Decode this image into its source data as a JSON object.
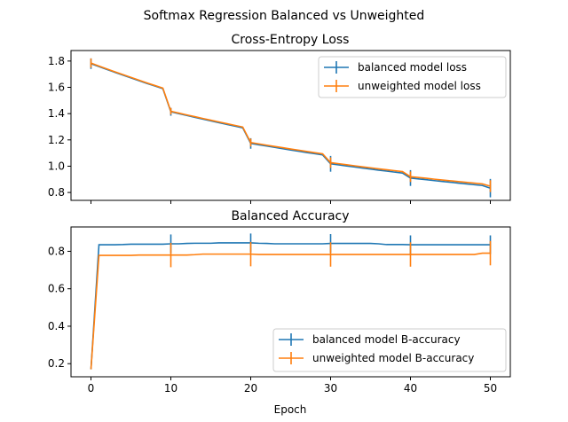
{
  "figure_title": "Softmax Regression Balanced vs Unweighted",
  "colors": {
    "balanced": "#1f77b4",
    "unweighted": "#ff7f0e"
  },
  "chart_data": [
    {
      "type": "line",
      "title": "Cross-Entropy Loss",
      "xlabel": "",
      "ylabel": "",
      "xlim": [
        -2.5,
        52.5
      ],
      "ylim": [
        0.74,
        1.88
      ],
      "xticks": [
        0,
        10,
        20,
        30,
        40,
        50
      ],
      "yticks": [
        0.8,
        1.0,
        1.2,
        1.4,
        1.6,
        1.8
      ],
      "ytick_labels": [
        "0.8",
        "1.0",
        "1.2",
        "1.4",
        "1.6",
        "1.8"
      ],
      "xtick_labels_shown": false,
      "legend_position": "top-right",
      "grid": false,
      "series": [
        {
          "name": "balanced model loss",
          "color_key": "balanced",
          "x": [
            0,
            1,
            2,
            3,
            4,
            5,
            6,
            7,
            8,
            9,
            10,
            11,
            12,
            13,
            14,
            15,
            16,
            17,
            18,
            19,
            20,
            21,
            22,
            23,
            24,
            25,
            26,
            27,
            28,
            29,
            30,
            31,
            32,
            33,
            34,
            35,
            36,
            37,
            38,
            39,
            40,
            41,
            42,
            43,
            44,
            45,
            46,
            47,
            48,
            49,
            50
          ],
          "y": [
            1.78,
            1.758,
            1.736,
            1.714,
            1.693,
            1.672,
            1.651,
            1.63,
            1.61,
            1.59,
            1.414,
            1.4,
            1.386,
            1.372,
            1.358,
            1.345,
            1.331,
            1.318,
            1.305,
            1.292,
            1.173,
            1.163,
            1.153,
            1.143,
            1.133,
            1.123,
            1.114,
            1.104,
            1.095,
            1.086,
            1.018,
            1.01,
            1.002,
            0.994,
            0.986,
            0.978,
            0.97,
            0.963,
            0.955,
            0.948,
            0.91,
            0.903,
            0.897,
            0.89,
            0.884,
            0.878,
            0.871,
            0.865,
            0.859,
            0.853,
            0.833
          ],
          "error_x": [
            0,
            10,
            20,
            30,
            40,
            50
          ],
          "error_y": [
            1.78,
            1.414,
            1.173,
            1.018,
            0.91,
            0.833
          ],
          "error_size": [
            0.04,
            0.03,
            0.04,
            0.06,
            0.06,
            0.07
          ]
        },
        {
          "name": "unweighted model loss",
          "color_key": "unweighted",
          "x": [
            0,
            1,
            2,
            3,
            4,
            5,
            6,
            7,
            8,
            9,
            10,
            11,
            12,
            13,
            14,
            15,
            16,
            17,
            18,
            19,
            20,
            21,
            22,
            23,
            24,
            25,
            26,
            27,
            28,
            29,
            30,
            31,
            32,
            33,
            34,
            35,
            36,
            37,
            38,
            39,
            40,
            41,
            42,
            43,
            44,
            45,
            46,
            47,
            48,
            49,
            50
          ],
          "y": [
            1.785,
            1.762,
            1.74,
            1.718,
            1.697,
            1.676,
            1.655,
            1.634,
            1.614,
            1.594,
            1.418,
            1.404,
            1.39,
            1.377,
            1.363,
            1.35,
            1.337,
            1.324,
            1.311,
            1.298,
            1.18,
            1.17,
            1.16,
            1.15,
            1.141,
            1.131,
            1.122,
            1.112,
            1.103,
            1.094,
            1.027,
            1.019,
            1.011,
            1.003,
            0.995,
            0.988,
            0.98,
            0.973,
            0.966,
            0.959,
            0.92,
            0.914,
            0.908,
            0.901,
            0.895,
            0.889,
            0.883,
            0.877,
            0.871,
            0.865,
            0.848
          ],
          "error_x": [
            0,
            10,
            20,
            30,
            40,
            50
          ],
          "error_y": [
            1.785,
            1.418,
            1.18,
            1.027,
            0.92,
            0.848
          ],
          "error_size": [
            0.035,
            0.025,
            0.03,
            0.04,
            0.04,
            0.045
          ]
        }
      ]
    },
    {
      "type": "line",
      "title": "Balanced Accuracy",
      "xlabel": "Epoch",
      "ylabel": "",
      "xlim": [
        -2.5,
        52.5
      ],
      "ylim": [
        0.13,
        0.93
      ],
      "xticks": [
        0,
        10,
        20,
        30,
        40,
        50
      ],
      "xtick_labels": [
        "0",
        "10",
        "20",
        "30",
        "40",
        "50"
      ],
      "yticks": [
        0.2,
        0.4,
        0.6,
        0.8
      ],
      "ytick_labels": [
        "0.2",
        "0.4",
        "0.6",
        "0.8"
      ],
      "legend_position": "bottom-right",
      "grid": false,
      "series": [
        {
          "name": "balanced model B-accuracy",
          "color_key": "balanced",
          "x": [
            0,
            1,
            2,
            3,
            4,
            5,
            6,
            7,
            8,
            9,
            10,
            11,
            12,
            13,
            14,
            15,
            16,
            17,
            18,
            19,
            20,
            21,
            22,
            23,
            24,
            25,
            26,
            27,
            28,
            29,
            30,
            31,
            32,
            33,
            34,
            35,
            36,
            37,
            38,
            39,
            40,
            41,
            42,
            43,
            44,
            45,
            46,
            47,
            48,
            49,
            50
          ],
          "y": [
            0.17,
            0.835,
            0.835,
            0.835,
            0.836,
            0.838,
            0.838,
            0.838,
            0.838,
            0.838,
            0.84,
            0.84,
            0.842,
            0.843,
            0.843,
            0.843,
            0.845,
            0.845,
            0.845,
            0.845,
            0.845,
            0.843,
            0.842,
            0.84,
            0.84,
            0.84,
            0.84,
            0.84,
            0.84,
            0.84,
            0.842,
            0.842,
            0.842,
            0.842,
            0.842,
            0.842,
            0.84,
            0.836,
            0.836,
            0.836,
            0.835,
            0.835,
            0.835,
            0.835,
            0.835,
            0.835,
            0.835,
            0.835,
            0.835,
            0.835,
            0.835
          ],
          "error_x": [
            10,
            20,
            30,
            40,
            50
          ],
          "error_y": [
            0.84,
            0.845,
            0.842,
            0.835,
            0.835
          ],
          "error_size": [
            0.05,
            0.05,
            0.05,
            0.05,
            0.05
          ]
        },
        {
          "name": "unweighted model B-accuracy",
          "color_key": "unweighted",
          "x": [
            0,
            1,
            2,
            3,
            4,
            5,
            6,
            7,
            8,
            9,
            10,
            11,
            12,
            13,
            14,
            15,
            16,
            17,
            18,
            19,
            20,
            21,
            22,
            23,
            24,
            25,
            26,
            27,
            28,
            29,
            30,
            31,
            32,
            33,
            34,
            35,
            36,
            37,
            38,
            39,
            40,
            41,
            42,
            43,
            44,
            45,
            46,
            47,
            48,
            49,
            50
          ],
          "y": [
            0.17,
            0.778,
            0.778,
            0.778,
            0.778,
            0.778,
            0.78,
            0.78,
            0.78,
            0.78,
            0.78,
            0.78,
            0.78,
            0.782,
            0.785,
            0.785,
            0.785,
            0.785,
            0.785,
            0.785,
            0.785,
            0.783,
            0.783,
            0.783,
            0.783,
            0.783,
            0.783,
            0.783,
            0.783,
            0.783,
            0.783,
            0.783,
            0.783,
            0.783,
            0.783,
            0.783,
            0.783,
            0.783,
            0.783,
            0.783,
            0.783,
            0.783,
            0.783,
            0.783,
            0.783,
            0.783,
            0.783,
            0.783,
            0.783,
            0.79,
            0.79
          ],
          "error_x": [
            10,
            20,
            30,
            40,
            50
          ],
          "error_y": [
            0.78,
            0.785,
            0.783,
            0.783,
            0.79
          ],
          "error_size": [
            0.065,
            0.065,
            0.065,
            0.065,
            0.065
          ]
        }
      ]
    }
  ]
}
